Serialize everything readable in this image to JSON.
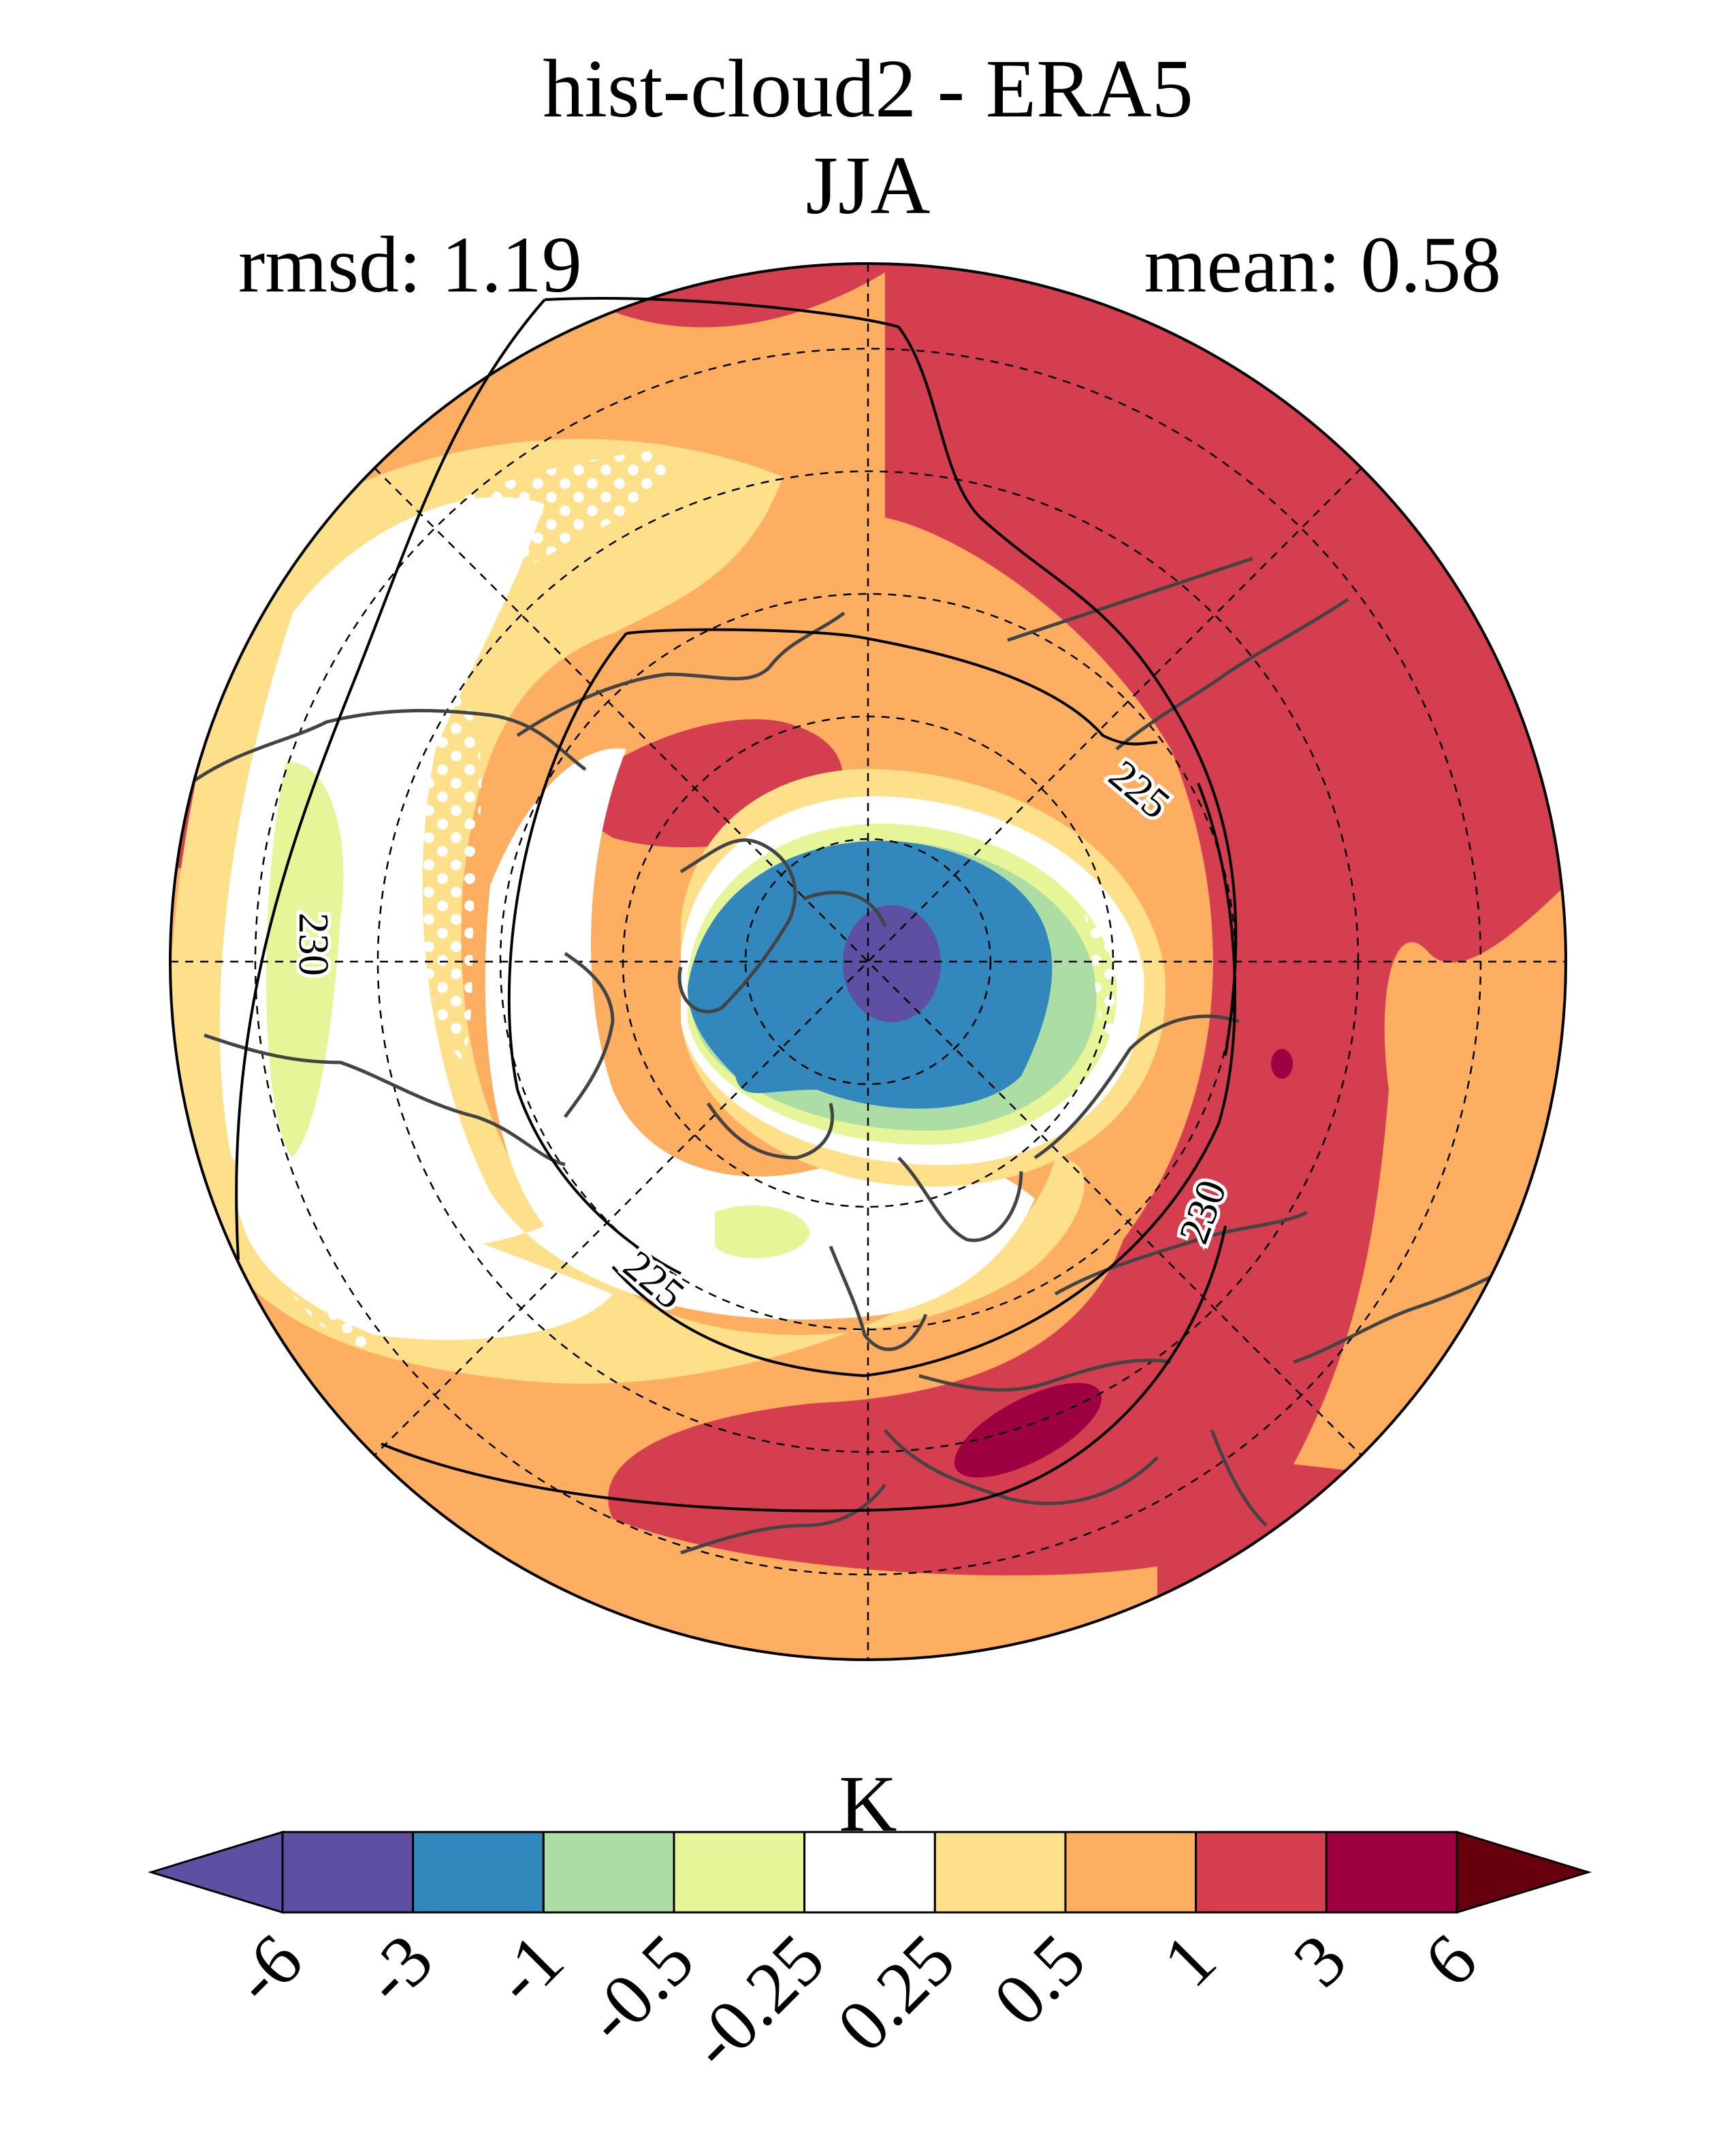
{
  "title": "hist-cloud2 - ERA5",
  "subtitle": "JJA",
  "stats": {
    "rmsd": "rmsd: 1.19",
    "mean": "mean: 0.58"
  },
  "contours": [
    {
      "label": "225"
    },
    {
      "label": "225"
    },
    {
      "label": "230"
    },
    {
      "label": "230"
    }
  ],
  "colorbar": {
    "units": "K",
    "ticks": [
      "-6",
      "-3",
      "-1",
      "-0.5",
      "-0.25",
      "0.25",
      "0.5",
      "1",
      "3",
      "6"
    ],
    "colors": [
      "#5e4fa2",
      "#5e4fa2",
      "#3288bd",
      "#abdda4",
      "#e6f598",
      "#ffffff",
      "#fee08b",
      "#fdae61",
      "#d53e4f",
      "#9e0142",
      "#67000d"
    ]
  },
  "palette": {
    "white": "#ffffff",
    "light_yellow": "#fee08b",
    "orange": "#fdae61",
    "red": "#d53e4f",
    "dark_red": "#9e0142",
    "light_green": "#e6f598",
    "green": "#abdda4",
    "blue": "#3288bd",
    "purple": "#5e4fa2",
    "coast": "#444444"
  }
}
